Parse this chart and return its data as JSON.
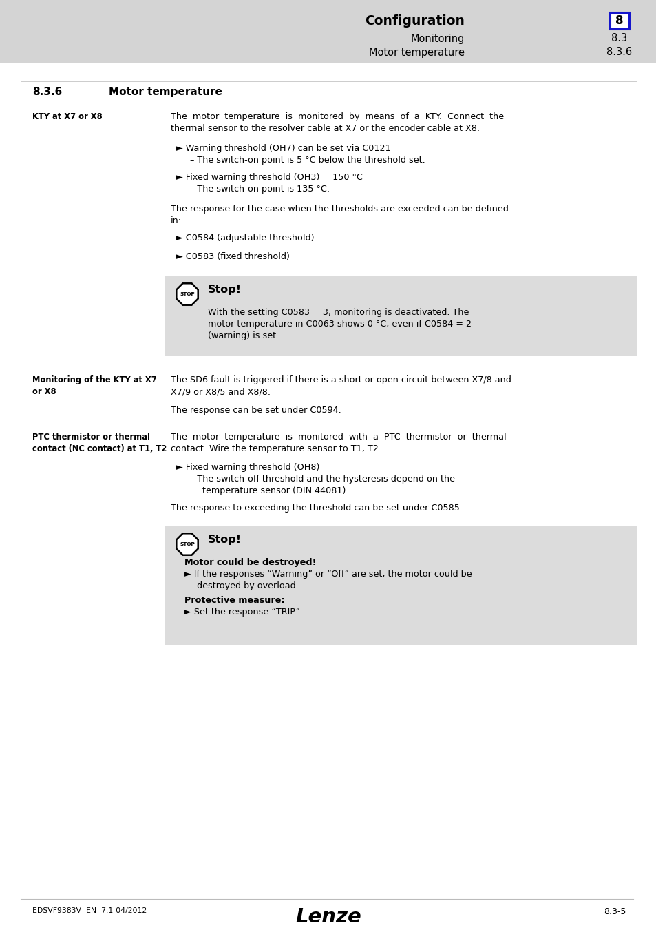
{
  "page_bg": "#ffffff",
  "header_bg": "#d4d4d4",
  "box_bg": "#dcdcdc",
  "header_title": "Configuration",
  "header_sub1": "Monitoring",
  "header_sub2": "Motor temperature",
  "header_num1": "8",
  "header_num2": "8.3",
  "header_num3": "8.3.6",
  "section_num": "8.3.6",
  "section_title": "Motor temperature",
  "label1": "KTY at X7 or X8",
  "label2_l1": "Monitoring of the KTY at X7",
  "label2_l2": "or X8",
  "label3_l1": "PTC thermistor or thermal",
  "label3_l2": "contact (NC contact) at T1, T2",
  "footer_left": "EDSVF9383V  EN  7.1-04/2012",
  "footer_center": "Lenze",
  "footer_right": "8.3-5"
}
